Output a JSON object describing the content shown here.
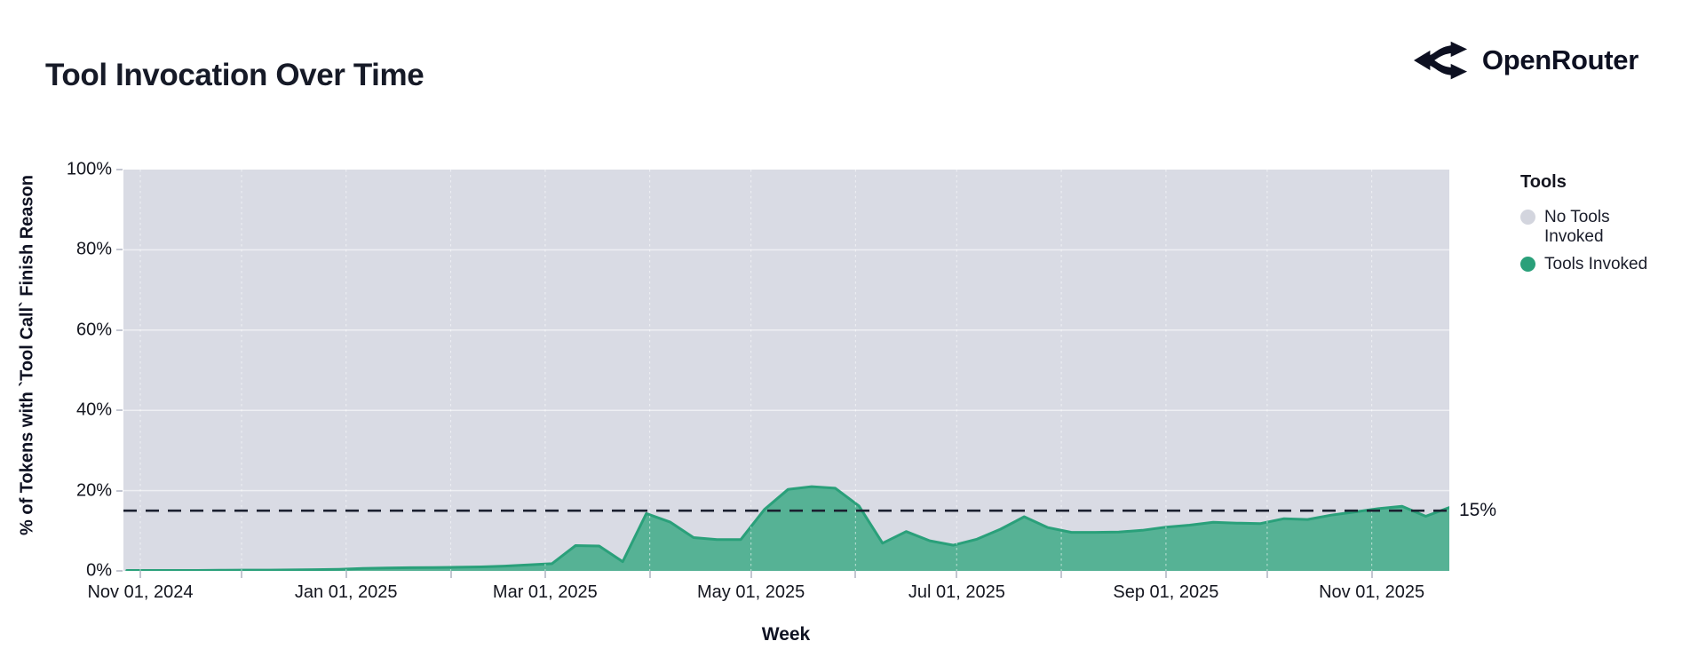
{
  "page": {
    "title": "Tool Invocation Over Time",
    "brand": "OpenRouter"
  },
  "chart_data": {
    "type": "area",
    "subtype": "stacked-100-percent",
    "title": "Tool Invocation Over Time",
    "xlabel": "Week",
    "ylabel": "% of Tokens with `Tool Call` Finish Reason",
    "ylim": [
      0,
      100
    ],
    "x_range": [
      "2024-10-27",
      "2025-11-24"
    ],
    "grid": "on",
    "legend_position": "right",
    "y_ticks": [
      {
        "label": "0%",
        "value": 0
      },
      {
        "label": "20%",
        "value": 20
      },
      {
        "label": "40%",
        "value": 40
      },
      {
        "label": "60%",
        "value": 60
      },
      {
        "label": "80%",
        "value": 80
      },
      {
        "label": "100%",
        "value": 100
      }
    ],
    "x_ticks": [
      {
        "label": "Nov 01, 2024",
        "date": "2024-11-01"
      },
      {
        "label": "Jan 01, 2025",
        "date": "2025-01-01"
      },
      {
        "label": "Mar 01, 2025",
        "date": "2025-03-01"
      },
      {
        "label": "May 01, 2025",
        "date": "2025-05-01"
      },
      {
        "label": "Jul 01, 2025",
        "date": "2025-07-01"
      },
      {
        "label": "Sep 01, 2025",
        "date": "2025-09-01"
      },
      {
        "label": "Nov 01, 2025",
        "date": "2025-11-01"
      }
    ],
    "x_gridline_dates": [
      "2024-11-01",
      "2024-12-01",
      "2025-01-01",
      "2025-02-01",
      "2025-03-01",
      "2025-04-01",
      "2025-05-01",
      "2025-06-01",
      "2025-07-01",
      "2025-08-01",
      "2025-09-01",
      "2025-10-01",
      "2025-11-01"
    ],
    "reference_line": {
      "value": 15,
      "label": "15%",
      "style": "dashed",
      "color": "#1b2030"
    },
    "legend": {
      "title": "Tools",
      "items": [
        {
          "label": "No Tools Invoked",
          "color": "#d3d5de"
        },
        {
          "label": "Tools Invoked",
          "color": "#2aa07a"
        }
      ]
    },
    "series": [
      {
        "name": "Tools Invoked",
        "color": "#2aa07a",
        "fill": "#56b295",
        "x": [
          "2024-10-28",
          "2024-11-04",
          "2024-11-11",
          "2024-11-18",
          "2024-11-25",
          "2024-12-02",
          "2024-12-09",
          "2024-12-16",
          "2024-12-23",
          "2024-12-30",
          "2025-01-06",
          "2025-01-13",
          "2025-01-20",
          "2025-01-27",
          "2025-02-03",
          "2025-02-10",
          "2025-02-17",
          "2025-02-24",
          "2025-03-03",
          "2025-03-10",
          "2025-03-17",
          "2025-03-24",
          "2025-03-31",
          "2025-04-07",
          "2025-04-14",
          "2025-04-21",
          "2025-04-28",
          "2025-05-05",
          "2025-05-12",
          "2025-05-19",
          "2025-05-26",
          "2025-06-02",
          "2025-06-09",
          "2025-06-16",
          "2025-06-23",
          "2025-06-30",
          "2025-07-07",
          "2025-07-14",
          "2025-07-21",
          "2025-07-28",
          "2025-08-04",
          "2025-08-11",
          "2025-08-18",
          "2025-08-25",
          "2025-09-01",
          "2025-09-08",
          "2025-09-15",
          "2025-09-22",
          "2025-09-29",
          "2025-10-06",
          "2025-10-13",
          "2025-10-20",
          "2025-10-27",
          "2025-11-03",
          "2025-11-10",
          "2025-11-17",
          "2025-11-24"
        ],
        "values": [
          0.1,
          0.1,
          0.1,
          0.1,
          0.15,
          0.2,
          0.2,
          0.25,
          0.3,
          0.4,
          0.6,
          0.7,
          0.8,
          0.85,
          0.9,
          1.0,
          1.2,
          1.5,
          1.8,
          6.3,
          6.2,
          2.3,
          14.3,
          12.2,
          8.3,
          7.8,
          7.8,
          15.3,
          20.3,
          21.0,
          20.6,
          16.2,
          6.9,
          9.8,
          7.5,
          6.4,
          7.9,
          10.4,
          13.5,
          10.8,
          9.6,
          9.6,
          9.7,
          10.1,
          10.9,
          11.4,
          12.1,
          11.9,
          11.8,
          13.0,
          12.8,
          13.9,
          14.7,
          15.5,
          16.1,
          13.6,
          15.8
        ]
      },
      {
        "name": "No Tools Invoked",
        "color": "#d3d5de",
        "definition": "remainder to 100%"
      }
    ],
    "colors": {
      "plot_bg": "#d9dbe4",
      "gridline": "rgba(255,255,255,0.55)",
      "tick_mark": "#c3c6d1",
      "text": "#14161f"
    }
  }
}
